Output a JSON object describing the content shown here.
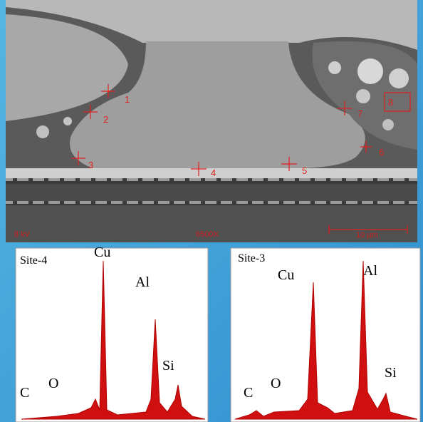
{
  "sem_image": {
    "markers": [
      "1",
      "2",
      "3",
      "4",
      "5",
      "6",
      "7",
      "8"
    ],
    "voltage": "8 kV",
    "magnification": "6500X",
    "scale_bar": "10 µm"
  },
  "spectra": [
    {
      "site": "Site-4",
      "labels": [
        "Cu",
        "Al",
        "Si",
        "C",
        "O"
      ]
    },
    {
      "site": "Site-3",
      "labels": [
        "Cu",
        "Al",
        "Si",
        "C",
        "O"
      ]
    }
  ]
}
